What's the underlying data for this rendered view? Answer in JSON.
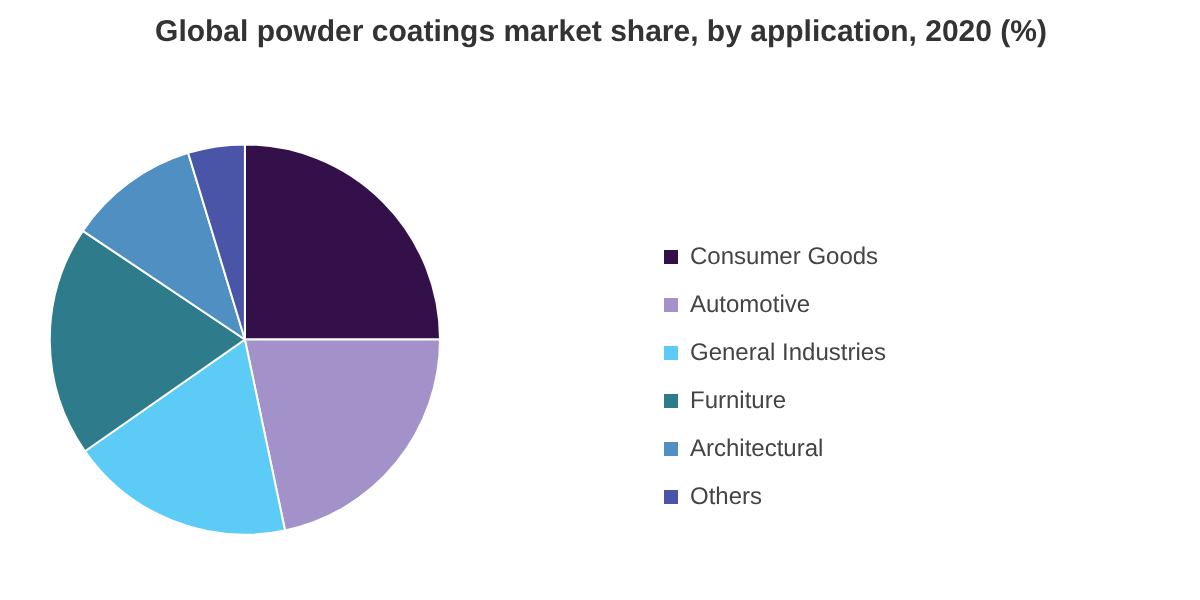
{
  "chart_data": {
    "type": "pie",
    "title": "Global powder coatings market share, by application, 2020 (%)",
    "categories": [
      "Consumer Goods",
      "Automotive",
      "General Industries",
      "Furniture",
      "Architectural",
      "Others"
    ],
    "values": [
      25,
      21.7,
      18.6,
      19.1,
      10.9,
      4.7
    ],
    "colors": [
      "#33104a",
      "#a391c9",
      "#5ccbf6",
      "#2e7b8b",
      "#4f8fc2",
      "#4a55a8"
    ],
    "legend": "right"
  }
}
